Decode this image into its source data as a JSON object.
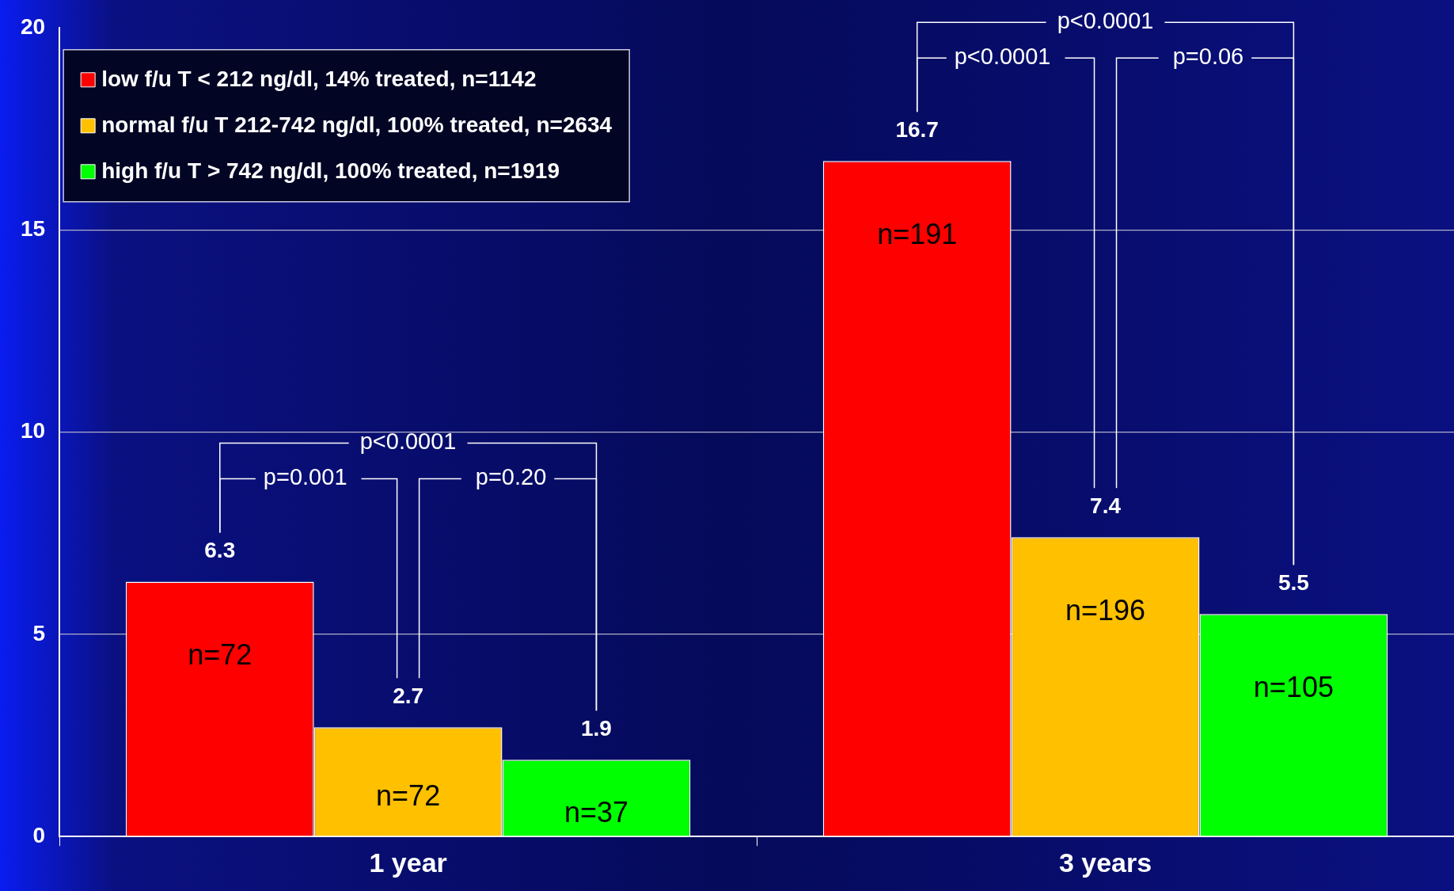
{
  "chart_data": {
    "type": "bar",
    "categories": [
      "1 year",
      "3 years"
    ],
    "series": [
      {
        "name": "low f/u T < 212 ng/dl, 14% treated, n=1142",
        "color": "#ff0000",
        "values": [
          6.3,
          16.7
        ]
      },
      {
        "name": "normal f/u T 212-742 ng/dl, 100% treated, n=2634",
        "color": "#ffc000",
        "values": [
          2.7,
          7.4
        ]
      },
      {
        "name": "high f/u T > 742 ng/dl, 100% treated, n=1919",
        "color": "#00ff00",
        "values": [
          1.9,
          5.5
        ]
      }
    ],
    "ylim": [
      0,
      20
    ],
    "yticks": [
      0,
      5,
      10,
      15,
      20
    ],
    "grid": "y",
    "legend": "top left",
    "data_labels": true,
    "annotations": [
      "n=72",
      "n=72",
      "n=37",
      "n=191",
      "n=196",
      "n=105",
      "p<0.0001",
      "p=0.001",
      "p=0.20",
      "p<0.0001",
      "p<0.0001",
      "p=0.06"
    ]
  }
}
